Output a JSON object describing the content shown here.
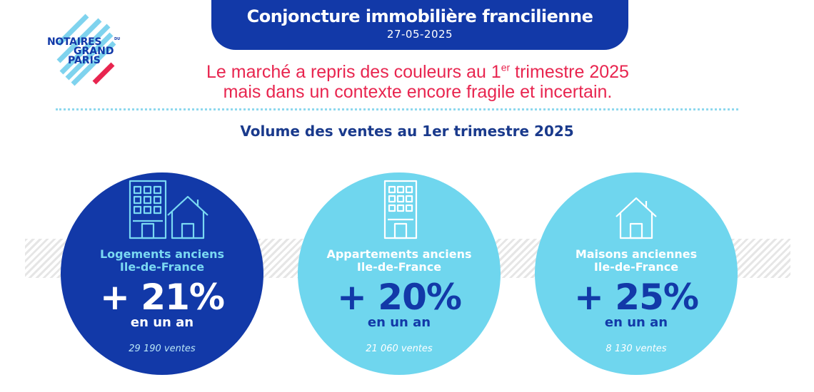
{
  "header": {
    "title": "Conjoncture immobilière francilienne",
    "date": "27-05-2025"
  },
  "logo": {
    "line1": "NOTAIRES",
    "small": "DU",
    "line2": "GRAND",
    "line3": "PARIS"
  },
  "headline": {
    "line1_before": "Le marché  a repris des couleurs au 1",
    "line1_sup": "er",
    "line1_after": " trimestre 2025",
    "line2": "mais dans un contexte encore fragile et incertain."
  },
  "subtitle": "Volume des ventes au 1er trimestre 2025",
  "cards": [
    {
      "label_line1": "Logements anciens",
      "label_line2": "Ile-de-France",
      "change": "+ 21%",
      "period": "en un an",
      "sales": "29 190 ventes",
      "icon": "building-and-house-icon"
    },
    {
      "label_line1": "Appartements anciens",
      "label_line2": "Ile-de-France",
      "change": "+ 20%",
      "period": "en un an",
      "sales": "21 060 ventes",
      "icon": "apartment-building-icon"
    },
    {
      "label_line1": "Maisons anciennes",
      "label_line2": "Ile-de-France",
      "change": "+ 25%",
      "period": "en un an",
      "sales": "8 130 ventes",
      "icon": "house-icon"
    }
  ],
  "colors": {
    "primary_blue": "#1239a8",
    "light_blue": "#6fd6ee",
    "accent_red": "#e8254f"
  }
}
